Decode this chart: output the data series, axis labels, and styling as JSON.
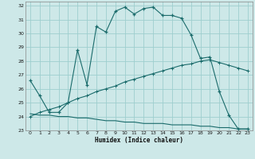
{
  "title": "",
  "xlabel": "Humidex (Indice chaleur)",
  "xlim": [
    -0.5,
    23.5
  ],
  "ylim": [
    23,
    32.3
  ],
  "yticks": [
    23,
    24,
    25,
    26,
    27,
    28,
    29,
    30,
    31,
    32
  ],
  "xticks": [
    0,
    1,
    2,
    3,
    4,
    5,
    6,
    7,
    8,
    9,
    10,
    11,
    12,
    13,
    14,
    15,
    16,
    17,
    18,
    19,
    20,
    21,
    22,
    23
  ],
  "bg_color": "#cde8e8",
  "grid_color": "#9ecece",
  "line_color": "#1a6b6b",
  "line1_x": [
    0,
    1,
    2,
    3,
    4,
    5,
    6,
    7,
    8,
    9,
    10,
    11,
    12,
    13,
    14,
    15,
    16,
    17,
    18,
    19,
    20,
    21,
    22,
    23
  ],
  "line1_y": [
    26.6,
    25.5,
    24.3,
    24.3,
    25.0,
    28.8,
    26.3,
    30.5,
    30.1,
    31.6,
    31.9,
    31.4,
    31.8,
    31.9,
    31.3,
    31.3,
    31.1,
    29.9,
    28.2,
    28.3,
    25.8,
    24.1,
    23.1,
    23.1
  ],
  "line2_x": [
    0,
    1,
    2,
    3,
    4,
    5,
    6,
    7,
    8,
    9,
    10,
    11,
    12,
    13,
    14,
    15,
    16,
    17,
    18,
    19,
    20,
    21,
    22,
    23
  ],
  "line2_y": [
    24.0,
    24.3,
    24.5,
    24.7,
    25.0,
    25.3,
    25.5,
    25.8,
    26.0,
    26.2,
    26.5,
    26.7,
    26.9,
    27.1,
    27.3,
    27.5,
    27.7,
    27.8,
    28.0,
    28.1,
    27.9,
    27.7,
    27.5,
    27.3
  ],
  "line3_x": [
    0,
    1,
    2,
    3,
    4,
    5,
    6,
    7,
    8,
    9,
    10,
    11,
    12,
    13,
    14,
    15,
    16,
    17,
    18,
    19,
    20,
    21,
    22,
    23
  ],
  "line3_y": [
    24.2,
    24.1,
    24.1,
    24.0,
    24.0,
    23.9,
    23.9,
    23.8,
    23.7,
    23.7,
    23.6,
    23.6,
    23.5,
    23.5,
    23.5,
    23.4,
    23.4,
    23.4,
    23.3,
    23.3,
    23.2,
    23.2,
    23.1,
    23.1
  ]
}
